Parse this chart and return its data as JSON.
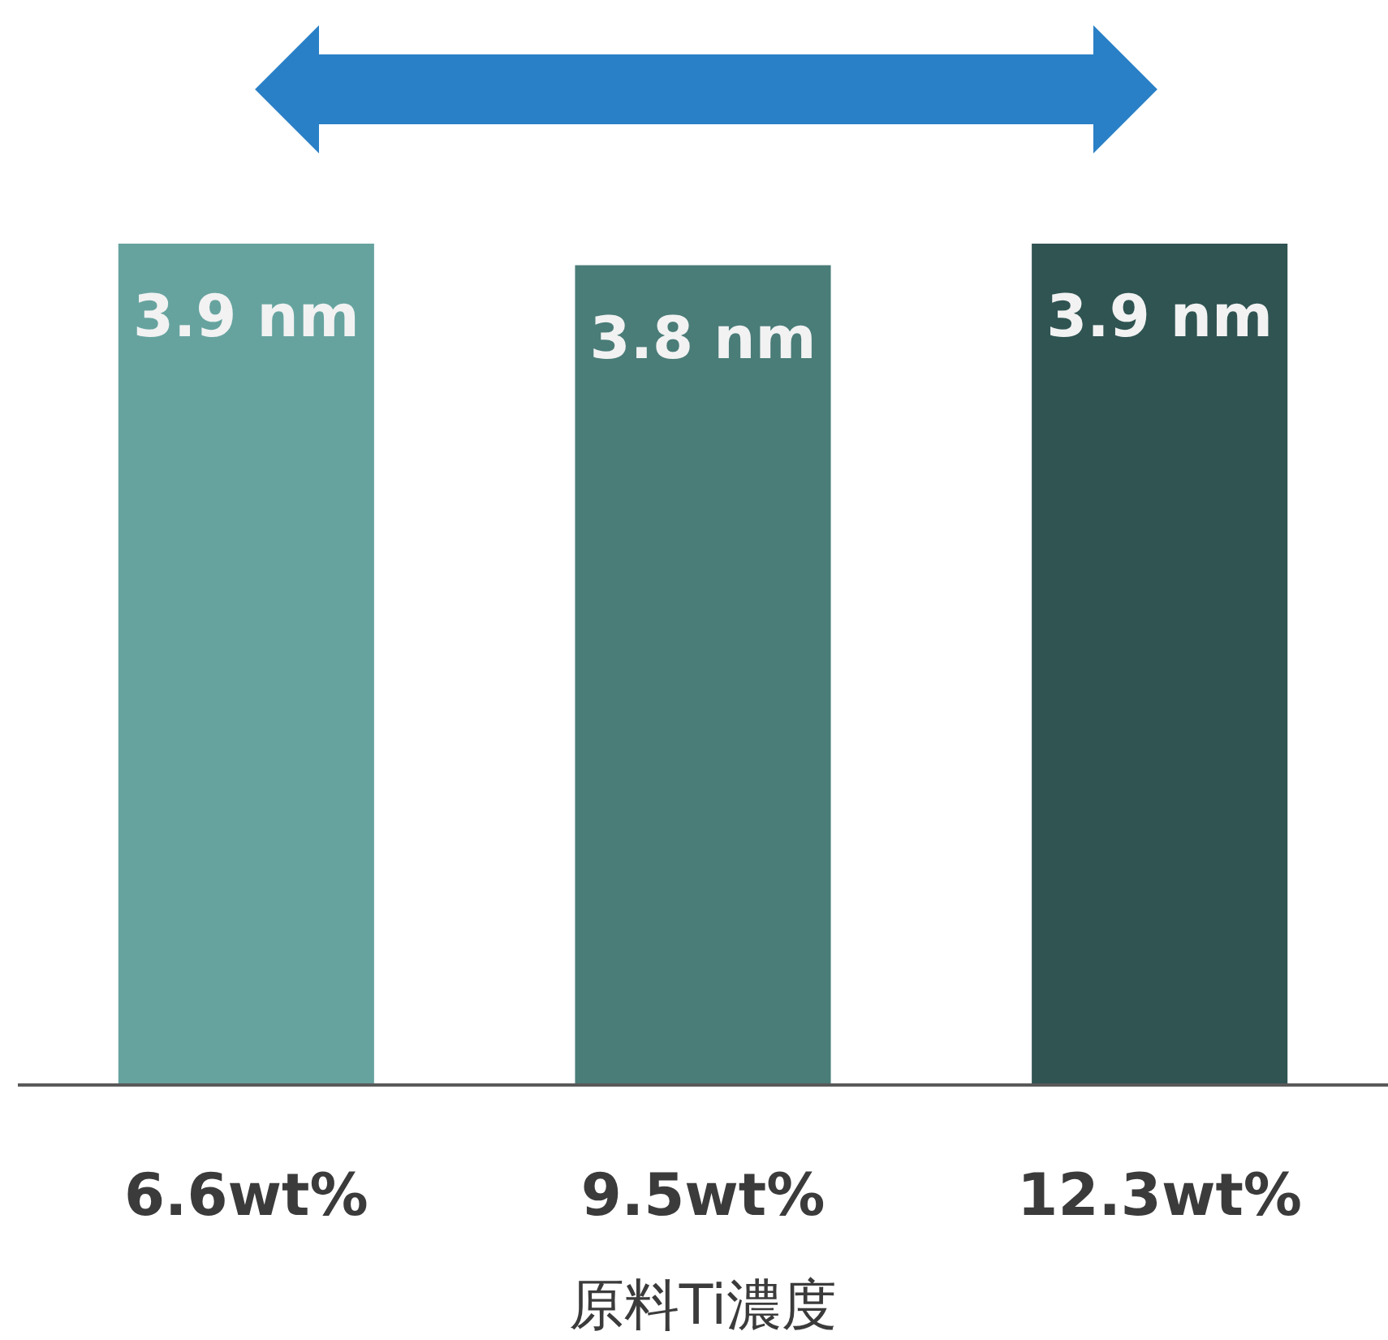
{
  "chart_data": {
    "type": "bar",
    "xlabel": "原料Ti濃度",
    "categories": [
      "6.6wt%",
      "9.5wt%",
      "12.3wt%"
    ],
    "values": [
      3.9,
      3.8,
      3.9
    ],
    "value_labels": [
      "3.9 nm",
      "3.8 nm",
      "3.9 nm"
    ],
    "colors": [
      "#66a39f",
      "#4a7c78",
      "#2f5452"
    ]
  }
}
